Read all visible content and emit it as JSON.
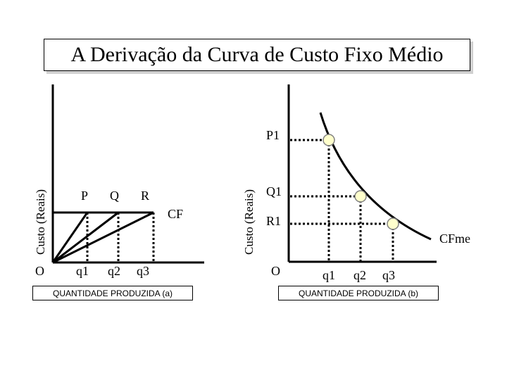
{
  "title": "A Derivação da Curva de Custo Fixo Médio",
  "panel_a": {
    "ylabel": "Custo (Reais)",
    "origin": "O",
    "ray_labels": [
      "P",
      "Q",
      "R"
    ],
    "cf_label": "CF",
    "qty_labels": [
      "q1",
      "q2",
      "q3"
    ],
    "xlabel": "QUANTIDADE PRODUZIDA (a)"
  },
  "panel_b": {
    "ylabel": "Custo (Reais)",
    "origin": "O",
    "price_labels": [
      "P1",
      "Q1",
      "R1"
    ],
    "curve_label": "CFme",
    "qty_labels": [
      "q1",
      "q2",
      "q3"
    ],
    "xlabel": "QUANTIDADE PRODUZIDA (b)"
  },
  "colors": {
    "point_fill": "#ffffcc",
    "title_shadow": "#d0d0d0"
  }
}
